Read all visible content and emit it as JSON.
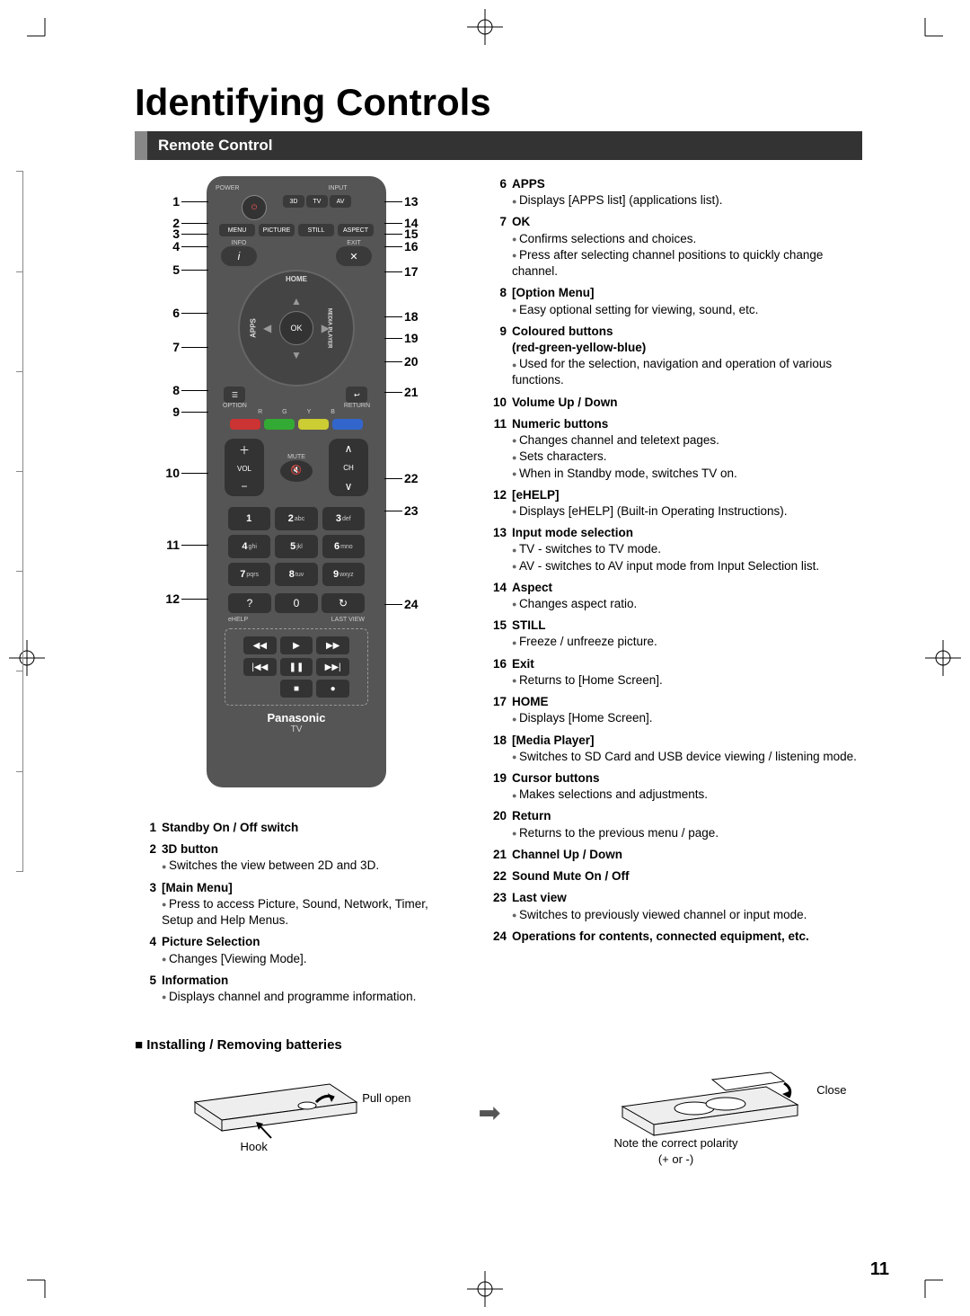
{
  "page": {
    "title": "Identifying Controls",
    "section_bar": "Remote Control",
    "page_number": "11"
  },
  "remote": {
    "top_labels": {
      "power": "POWER",
      "input": "INPUT"
    },
    "input_buttons": [
      "3D",
      "TV",
      "AV"
    ],
    "menu_row": [
      "MENU",
      "PICTURE",
      "STILL",
      "ASPECT"
    ],
    "info_row": {
      "left": "INFO",
      "right": "EXIT"
    },
    "info_icons": {
      "left": "i",
      "right": "✕"
    },
    "home_ring": {
      "top": "HOME",
      "left": "APPS",
      "right": "MEDIA PLAYER",
      "center": "OK"
    },
    "opt_ret": {
      "left_label": "OPTION",
      "right_label": "RETURN",
      "right_icon": "↩"
    },
    "color_labels": [
      "R",
      "G",
      "Y",
      "B"
    ],
    "vol": {
      "plus": "＋",
      "minus": "−",
      "label": "VOL"
    },
    "mute": {
      "label": "MUTE",
      "icon": "🔇"
    },
    "ch": {
      "up": "∧",
      "down": "∨",
      "label": "CH"
    },
    "keypad": [
      [
        "1",
        ""
      ],
      [
        "2",
        "abc"
      ],
      [
        "3",
        "def"
      ],
      [
        "4",
        "ghi"
      ],
      [
        "5",
        "jkl"
      ],
      [
        "6",
        "mno"
      ],
      [
        "7",
        "pqrs"
      ],
      [
        "8",
        "tuv"
      ],
      [
        "9",
        "wxyz"
      ]
    ],
    "ehelp_row": {
      "left": "?",
      "mid": "0",
      "right": "↻"
    },
    "ehelp_labels": {
      "left": "eHELP",
      "right": "LAST VIEW"
    },
    "media_buttons": [
      "◀◀",
      "▶",
      "▶▶",
      "|◀◀",
      "❚❚",
      "▶▶|",
      "",
      "■",
      "●"
    ],
    "brand": "Panasonic",
    "brand_sub": "TV"
  },
  "callouts_left": [
    "1",
    "2",
    "3",
    "4",
    "5",
    "6",
    "7",
    "8",
    "9",
    "10",
    "11",
    "12"
  ],
  "callouts_right": [
    "13",
    "14",
    "15",
    "16",
    "17",
    "18",
    "19",
    "20",
    "21",
    "22",
    "23",
    "24"
  ],
  "desc_left": [
    {
      "n": "1",
      "t": "Standby On / Off switch",
      "b": []
    },
    {
      "n": "2",
      "t": "3D button",
      "b": [
        "Switches the view between 2D and 3D."
      ]
    },
    {
      "n": "3",
      "t": "[Main Menu]",
      "b": [
        "Press to access Picture, Sound, Network, Timer, Setup and Help Menus."
      ]
    },
    {
      "n": "4",
      "t": "Picture Selection",
      "b": [
        "Changes [Viewing Mode]."
      ]
    },
    {
      "n": "5",
      "t": "Information",
      "b": [
        "Displays channel and programme information."
      ]
    }
  ],
  "desc_right": [
    {
      "n": "6",
      "t": "APPS",
      "b": [
        "Displays [APPS list] (applications list)."
      ]
    },
    {
      "n": "7",
      "t": "OK",
      "b": [
        "Confirms selections and choices.",
        "Press after selecting channel positions to quickly change channel."
      ]
    },
    {
      "n": "8",
      "t": "[Option Menu]",
      "b": [
        "Easy optional setting for viewing, sound, etc."
      ]
    },
    {
      "n": "9",
      "t": "Coloured buttons\n(red-green-yellow-blue)",
      "b": [
        "Used for the selection, navigation and operation of various functions."
      ]
    },
    {
      "n": "10",
      "t": "Volume Up / Down",
      "b": []
    },
    {
      "n": "11",
      "t": "Numeric buttons",
      "b": [
        "Changes channel and teletext pages.",
        "Sets characters.",
        "When in Standby mode, switches TV on."
      ]
    },
    {
      "n": "12",
      "t": "[eHELP]",
      "b": [
        "Displays [eHELP] (Built-in Operating Instructions)."
      ]
    },
    {
      "n": "13",
      "t": "Input mode selection",
      "b": [
        "TV - switches to TV mode.",
        "AV - switches to AV input mode from Input Selection list."
      ]
    },
    {
      "n": "14",
      "t": "Aspect",
      "b": [
        "Changes aspect ratio."
      ]
    },
    {
      "n": "15",
      "t": "STILL",
      "b": [
        "Freeze / unfreeze picture."
      ]
    },
    {
      "n": "16",
      "t": "Exit",
      "b": [
        "Returns to [Home Screen]."
      ]
    },
    {
      "n": "17",
      "t": "HOME",
      "b": [
        "Displays [Home Screen]."
      ]
    },
    {
      "n": "18",
      "t": "[Media Player]",
      "b": [
        "Switches to SD Card and USB device viewing / listening mode."
      ]
    },
    {
      "n": "19",
      "t": "Cursor buttons",
      "b": [
        "Makes selections and adjustments."
      ]
    },
    {
      "n": "20",
      "t": "Return",
      "b": [
        "Returns to the previous menu / page."
      ]
    },
    {
      "n": "21",
      "t": "Channel Up / Down",
      "b": []
    },
    {
      "n": "22",
      "t": "Sound Mute On / Off",
      "b": []
    },
    {
      "n": "23",
      "t": "Last view",
      "b": [
        "Switches to previously viewed channel or input mode."
      ]
    },
    {
      "n": "24",
      "t": "Operations for contents, connected equipment, etc.",
      "b": []
    }
  ],
  "battery": {
    "heading": "Installing / Removing batteries",
    "pull_open": "Pull open",
    "hook": "Hook",
    "close": "Close",
    "note": "Note the correct polarity",
    "note2": "(+ or -)"
  },
  "colors": {
    "bar_bg": "#333333",
    "bar_accent": "#888888",
    "remote_body": "#555555"
  }
}
